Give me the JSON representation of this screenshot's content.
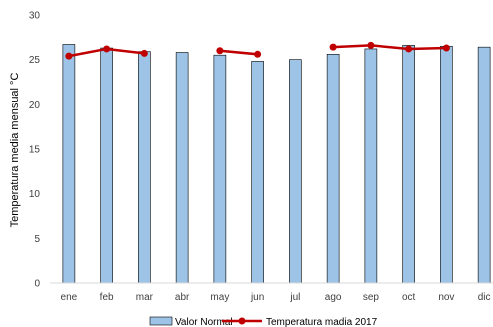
{
  "chart_data": {
    "type": "bar",
    "ylabel": "Temperatura media mensual °C",
    "ylim": [
      0,
      30
    ],
    "yticks": [
      0,
      5,
      10,
      15,
      20,
      25,
      30
    ],
    "grid": false,
    "legend_position": "bottom",
    "categories": [
      "ene",
      "feb",
      "mar",
      "abr",
      "may",
      "jun",
      "jul",
      "ago",
      "sep",
      "oct",
      "nov",
      "dic"
    ],
    "series": [
      {
        "name": "Valor Normal",
        "kind": "bar",
        "color": "#9DC3E6",
        "edge_color": "#000000",
        "values": [
          26.7,
          26.3,
          25.9,
          25.8,
          25.5,
          24.8,
          25.0,
          25.6,
          26.2,
          26.6,
          26.5,
          26.4
        ]
      },
      {
        "name": "Temperatura madia 2017",
        "kind": "line",
        "color": "#C00000",
        "segments": [
          [
            0,
            2
          ],
          [
            4,
            5
          ],
          [
            7,
            10
          ]
        ],
        "values": [
          25.4,
          26.2,
          25.7,
          null,
          26.0,
          25.6,
          null,
          26.4,
          26.6,
          26.2,
          26.3,
          null
        ]
      }
    ]
  }
}
